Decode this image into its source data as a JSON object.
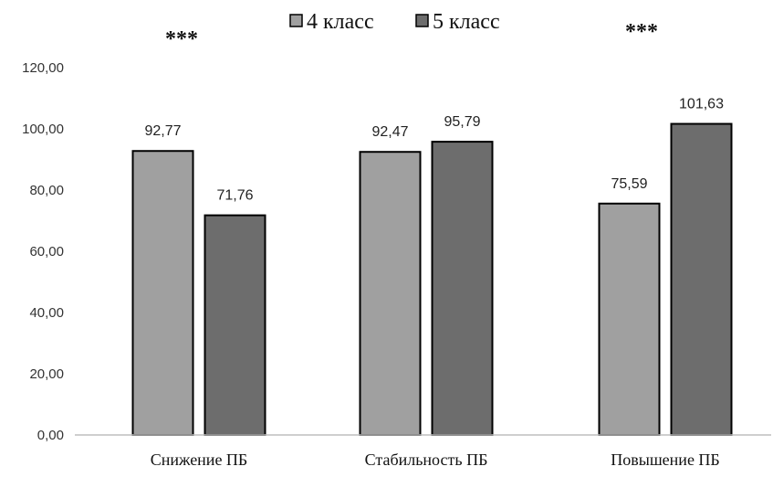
{
  "chart_data": {
    "type": "bar",
    "title": "",
    "xlabel": "",
    "ylabel": "",
    "ylim": [
      0,
      120
    ],
    "yticks": [
      "0,00",
      "20,00",
      "40,00",
      "60,00",
      "80,00",
      "100,00",
      "120,00"
    ],
    "grid": false,
    "legend_position": "top-center",
    "categories": [
      "Снижение ПБ",
      "Стабильность ПБ",
      "Повышение ПБ"
    ],
    "series": [
      {
        "name": "4 класс",
        "color": "#a0a0a0",
        "values": [
          92.77,
          92.47,
          75.59
        ],
        "labels": [
          "92,77",
          "92,47",
          "75,59"
        ]
      },
      {
        "name": "5 класс",
        "color": "#6d6d6d",
        "values": [
          71.76,
          95.79,
          101.63
        ],
        "labels": [
          "71,76",
          "95,79",
          "101,63"
        ]
      }
    ],
    "annotations": [
      "***",
      "",
      "***"
    ]
  }
}
